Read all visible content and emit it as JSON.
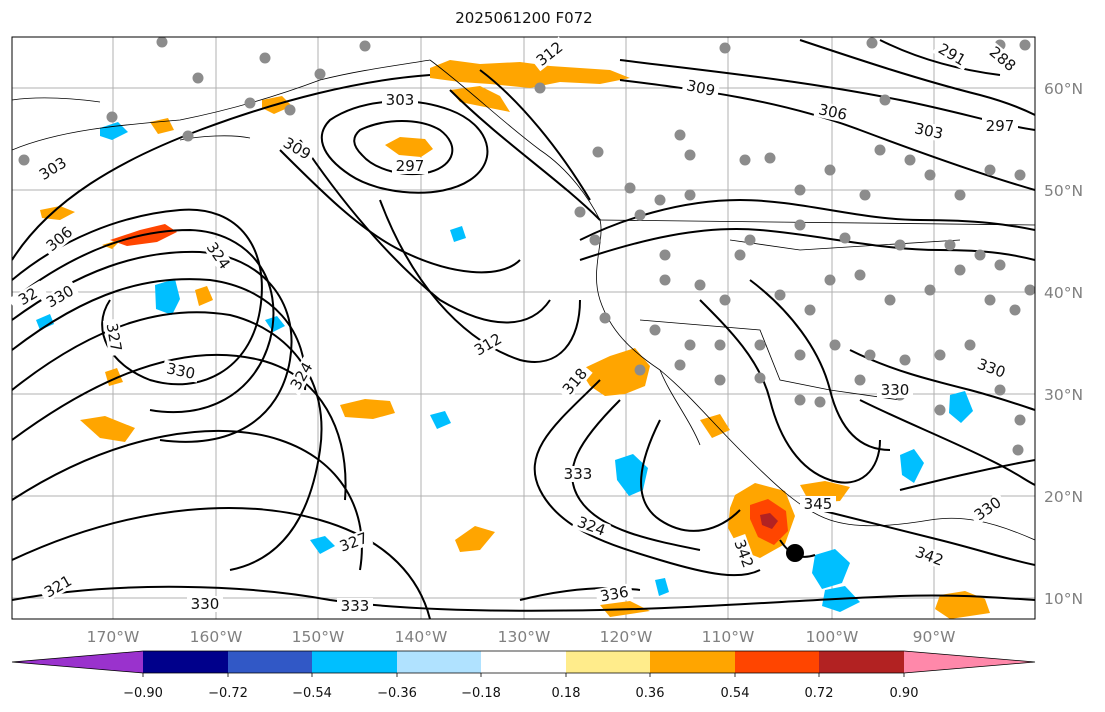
{
  "title": "2025061200 F072",
  "colors": {
    "background": "#ffffff",
    "contour": "#000000",
    "grid": "#b0b0b0",
    "axis_label": "#808080",
    "station": "#8c8c8c"
  },
  "map": {
    "lon_range": [
      -180,
      -80
    ],
    "lat_range": [
      8,
      65
    ],
    "lat_ticks": [
      "60°N",
      "50°N",
      "40°N",
      "30°N",
      "20°N",
      "10°N"
    ],
    "lon_ticks": [
      "170°W",
      "160°W",
      "150°W",
      "140°W",
      "130°W",
      "120°W",
      "110°W",
      "100°W",
      "90°W"
    ]
  },
  "contour_labels": [
    "312",
    "303",
    "309",
    "297",
    "309",
    "306",
    "303",
    "297",
    "291",
    "288",
    "303",
    "306",
    "32",
    "330",
    "327",
    "324",
    "330",
    "324",
    "312",
    "318",
    "330",
    "333",
    "324",
    "327",
    "321",
    "330",
    "333",
    "336",
    "345",
    "330",
    "342",
    "330",
    "342"
  ],
  "colorbar": {
    "colors": [
      "#9a32cd",
      "#00008b",
      "#3158c6",
      "#00bfff",
      "#b0e2ff",
      "#ffffff",
      "#ffec8b",
      "#ffa500",
      "#ff4500",
      "#b22222",
      "#ff88aa"
    ],
    "ticks": [
      "−0.90",
      "−0.72",
      "−0.54",
      "−0.36",
      "−0.18",
      "0.18",
      "0.36",
      "0.54",
      "0.72",
      "0.90"
    ]
  }
}
